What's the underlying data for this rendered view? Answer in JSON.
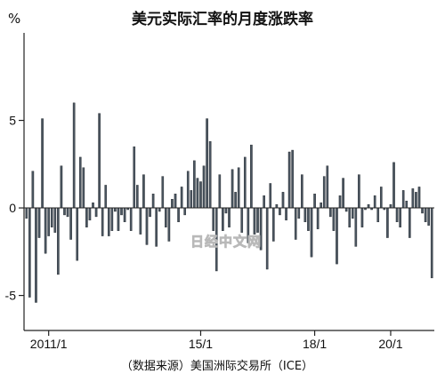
{
  "chart_data": {
    "type": "bar",
    "title": "美元实际汇率的月度涨跌率",
    "unit_label": "%",
    "ylim": [
      -7,
      10
    ],
    "y_ticks": [
      {
        "value": 5,
        "label": "5"
      },
      {
        "value": 0,
        "label": "0"
      },
      {
        "value": -5,
        "label": "-5"
      }
    ],
    "x_ticks": [
      {
        "label": "2011/1",
        "index": 7
      },
      {
        "label": "15/1",
        "index": 55
      },
      {
        "label": "18/1",
        "index": 91
      },
      {
        "label": "20/1",
        "index": 115
      }
    ],
    "bar_color": "#4a5560",
    "source": "（数据来源）美国洲际交易所（ICE）",
    "watermark": "日经中文网",
    "series": [
      {
        "values": [
          -0.6,
          -5.1,
          2.1,
          -5.4,
          -1.7,
          5.1,
          -2.6,
          -1.6,
          -1.1,
          -1.4,
          -3.8,
          2.4,
          -0.4,
          -0.5,
          -1.8,
          6.0,
          -3.0,
          2.9,
          2.3,
          -1.1,
          -0.7,
          0.3,
          -0.5,
          5.4,
          -1.6,
          1.3,
          -1.6,
          -1.3,
          -0.2,
          -1.3,
          -0.4,
          -0.8,
          -0.1,
          -1.3,
          3.5,
          1.3,
          -1.5,
          1.9,
          -2.1,
          -0.5,
          0.8,
          -2.2,
          -0.2,
          1.8,
          -1.1,
          -1.9,
          0.5,
          0.8,
          -0.8,
          1.2,
          -0.4,
          2.1,
          1.0,
          2.7,
          1.7,
          1.5,
          2.4,
          5.1,
          3.8,
          -1.3,
          -3.6,
          1.9,
          -1.3,
          -0.3,
          -1.1,
          2.2,
          0.9,
          2.3,
          -1.4,
          2.9,
          -2.0,
          3.6,
          -1.5,
          -1.4,
          -2.4,
          0.7,
          -3.5,
          1.4,
          -1.9,
          0.2,
          -0.4,
          0.9,
          -0.7,
          3.2,
          3.3,
          -1.8,
          -0.6,
          1.9,
          -0.8,
          -1.3,
          -2.8,
          0.8,
          -1.2,
          0.3,
          1.8,
          2.4,
          -0.5,
          -1.3,
          -3.2,
          0.7,
          1.7,
          -0.2,
          -1.1,
          -0.6,
          -2.2,
          1.9,
          -1.1,
          -0.1,
          0.2,
          -0.1,
          0.7,
          -0.8,
          1.2,
          -0.1,
          -1.7,
          0.2,
          2.6,
          -0.8,
          -1.1,
          1.0,
          0.4,
          -1.7,
          1.1,
          0.9,
          1.2,
          -0.3,
          -0.8,
          -1.0,
          -4.0
        ]
      }
    ]
  }
}
